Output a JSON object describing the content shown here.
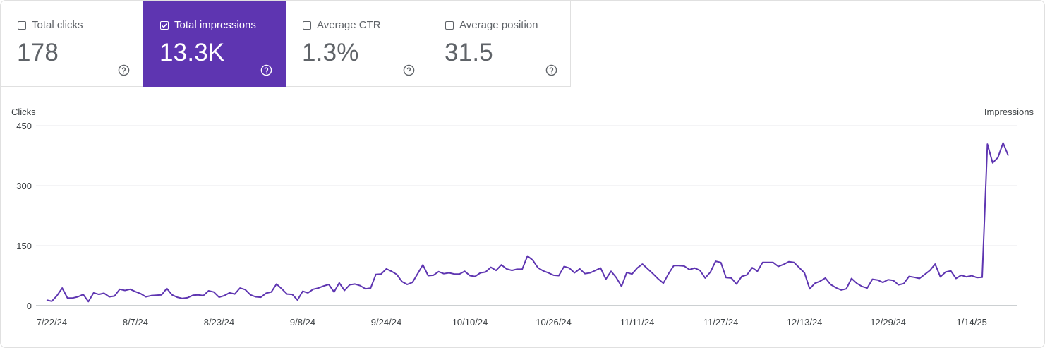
{
  "metrics": [
    {
      "label": "Total clicks",
      "value": "178",
      "selected": false
    },
    {
      "label": "Total impressions",
      "value": "13.3K",
      "selected": true
    },
    {
      "label": "Average CTR",
      "value": "1.3%",
      "selected": false
    },
    {
      "label": "Average position",
      "value": "31.5",
      "selected": false
    }
  ],
  "colors": {
    "accent": "#5e35b1",
    "line": "#5e35b1"
  },
  "icons": {
    "help": "help-circle-icon",
    "check": "check-icon"
  },
  "chart_data": {
    "type": "line",
    "left_axis_title": "Clicks",
    "right_axis_title": "Impressions",
    "ylim": [
      0,
      450
    ],
    "yticks": [
      0,
      150,
      300,
      450
    ],
    "grid": true,
    "x_tick_labels": [
      "7/22/24",
      "8/7/24",
      "8/23/24",
      "9/8/24",
      "9/24/24",
      "10/10/24",
      "10/26/24",
      "11/11/24",
      "11/27/24",
      "12/13/24",
      "12/29/24",
      "1/14/25"
    ],
    "start_date": "7/21/24",
    "series": [
      {
        "name": "Total impressions",
        "values": [
          14,
          11,
          25,
          44,
          19,
          19,
          22,
          28,
          10,
          32,
          28,
          31,
          22,
          24,
          41,
          38,
          41,
          35,
          30,
          22,
          25,
          26,
          27,
          43,
          27,
          21,
          18,
          20,
          26,
          27,
          25,
          37,
          34,
          21,
          25,
          32,
          29,
          44,
          40,
          27,
          22,
          21,
          31,
          34,
          54,
          42,
          29,
          28,
          14,
          36,
          32,
          41,
          44,
          49,
          53,
          34,
          57,
          38,
          52,
          54,
          50,
          42,
          44,
          78,
          79,
          92,
          86,
          78,
          60,
          53,
          58,
          80,
          102,
          75,
          76,
          85,
          80,
          82,
          79,
          79,
          86,
          75,
          73,
          82,
          84,
          96,
          88,
          102,
          92,
          88,
          91,
          91,
          124,
          114,
          95,
          87,
          82,
          76,
          75,
          98,
          94,
          82,
          92,
          80,
          82,
          88,
          94,
          66,
          86,
          70,
          48,
          83,
          79,
          94,
          104,
          92,
          80,
          67,
          56,
          80,
          100,
          100,
          99,
          90,
          94,
          88,
          69,
          84,
          111,
          108,
          70,
          69,
          54,
          73,
          77,
          95,
          86,
          108,
          108,
          108,
          98,
          103,
          110,
          108,
          95,
          82,
          42,
          56,
          61,
          69,
          53,
          45,
          39,
          42,
          68,
          56,
          48,
          44,
          66,
          64,
          58,
          65,
          63,
          52,
          55,
          73,
          71,
          68,
          78,
          88,
          104,
          72,
          84,
          87,
          68,
          76,
          72,
          75,
          70,
          71,
          404,
          357,
          370,
          407,
          375
        ]
      }
    ]
  }
}
